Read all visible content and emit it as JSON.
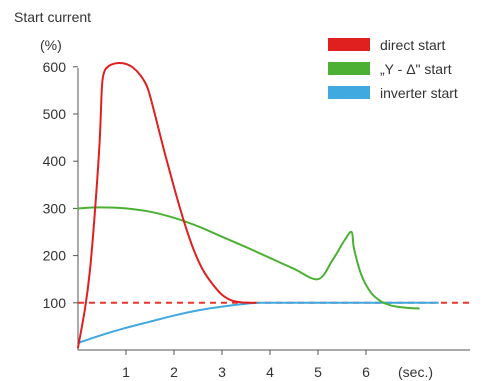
{
  "chart_data": {
    "type": "line",
    "title": "",
    "ylabel": "Start current",
    "yunit": "(%)",
    "xunit": "(sec.)",
    "xlim": [
      0,
      7.5
    ],
    "ylim": [
      0,
      650
    ],
    "xticks": [
      1,
      2,
      3,
      4,
      5,
      6
    ],
    "yticks": [
      100,
      200,
      300,
      400,
      500,
      600
    ],
    "grid": false,
    "legend": {
      "position": "top-right",
      "entries": [
        "direct start",
        "„Y - Δ\" start",
        "inverter start"
      ]
    },
    "reference_line": {
      "y": 100,
      "style": "dashed",
      "color": "#e8352a"
    },
    "series": [
      {
        "name": "direct start",
        "color": "#e01f1f",
        "x": [
          0,
          0.15,
          0.25,
          0.35,
          0.45,
          0.5,
          0.55,
          0.6,
          0.7,
          0.85,
          1.0,
          1.15,
          1.3,
          1.45,
          1.6,
          1.8,
          2.0,
          2.2,
          2.4,
          2.6,
          2.8,
          3.0,
          3.2,
          3.4,
          3.6,
          3.7
        ],
        "y": [
          5,
          90,
          170,
          290,
          440,
          560,
          590,
          598,
          605,
          608,
          606,
          598,
          582,
          555,
          500,
          420,
          345,
          275,
          215,
          170,
          140,
          117,
          105,
          101,
          100,
          100
        ]
      },
      {
        "name": "„Y - Δ\" start",
        "color": "#4cb034",
        "x": [
          0,
          0.3,
          0.6,
          1.0,
          1.5,
          2.0,
          2.5,
          3.0,
          3.5,
          4.0,
          4.5,
          5.0,
          5.3,
          5.55,
          5.7,
          5.75,
          5.9,
          6.1,
          6.3,
          6.5,
          6.7,
          6.9,
          7.1
        ],
        "y": [
          300,
          302,
          302,
          300,
          293,
          280,
          262,
          240,
          218,
          195,
          172,
          150,
          190,
          232,
          250,
          215,
          160,
          122,
          104,
          95,
          91,
          89,
          88
        ]
      },
      {
        "name": "inverter start",
        "color": "#3fa9e0",
        "x": [
          0,
          0.5,
          1.0,
          1.5,
          2.0,
          2.5,
          3.0,
          3.5,
          3.8,
          4.0,
          5.0,
          6.0,
          7.0,
          7.5
        ],
        "y": [
          15,
          32,
          47,
          60,
          73,
          84,
          92,
          98,
          100,
          100,
          100,
          100,
          100,
          100
        ]
      }
    ]
  }
}
